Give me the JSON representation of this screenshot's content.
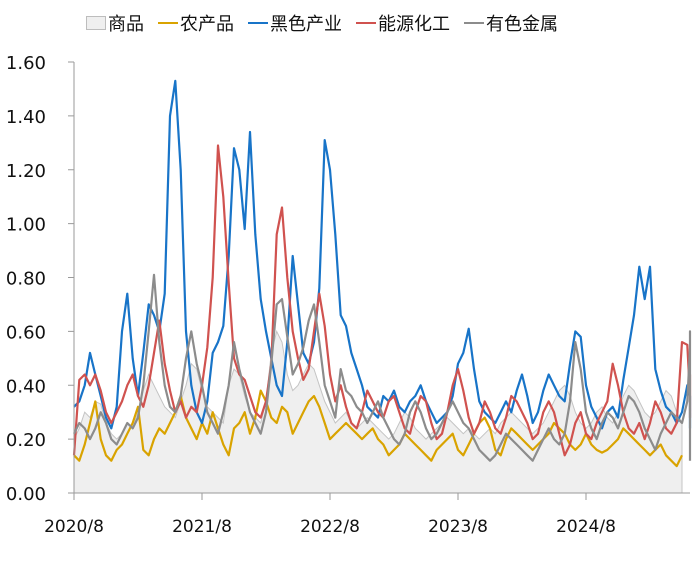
{
  "chart_data": {
    "type": "line",
    "title": "",
    "xlabel": "",
    "ylabel": "",
    "ylim": [
      0,
      1.6
    ],
    "yticks": [
      "0.00",
      "0.20",
      "0.40",
      "0.60",
      "0.80",
      "1.00",
      "1.20",
      "1.40",
      "1.60"
    ],
    "xticks": [
      "2020/8",
      "2021/8",
      "2022/8",
      "2023/8",
      "2024/8"
    ],
    "x_range": [
      "2020/8",
      "2025/3"
    ],
    "grid": false,
    "legend_position": "top",
    "sampling": "half-monthly, starting 2020/8",
    "series": [
      {
        "name": "商品",
        "kind": "area",
        "color": "#efefef",
        "stroke": "#c4c4c4",
        "values": [
          0.2,
          0.24,
          0.3,
          0.28,
          0.34,
          0.33,
          0.26,
          0.22,
          0.2,
          0.22,
          0.26,
          0.24,
          0.3,
          0.38,
          0.44,
          0.4,
          0.36,
          0.32,
          0.3,
          0.28,
          0.34,
          0.4,
          0.48,
          0.46,
          0.38,
          0.32,
          0.3,
          0.28,
          0.26,
          0.4,
          0.46,
          0.44,
          0.36,
          0.3,
          0.28,
          0.26,
          0.34,
          0.52,
          0.6,
          0.56,
          0.44,
          0.38,
          0.4,
          0.44,
          0.48,
          0.46,
          0.4,
          0.34,
          0.3,
          0.26,
          0.28,
          0.3,
          0.26,
          0.24,
          0.26,
          0.28,
          0.26,
          0.24,
          0.22,
          0.2,
          0.22,
          0.26,
          0.3,
          0.28,
          0.24,
          0.22,
          0.2,
          0.22,
          0.24,
          0.26,
          0.28,
          0.26,
          0.24,
          0.22,
          0.24,
          0.22,
          0.2,
          0.22,
          0.24,
          0.22,
          0.26,
          0.28,
          0.3,
          0.28,
          0.26,
          0.24,
          0.22,
          0.24,
          0.26,
          0.3,
          0.34,
          0.38,
          0.4,
          0.36,
          0.3,
          0.26,
          0.24,
          0.26,
          0.3,
          0.32,
          0.28,
          0.26,
          0.3,
          0.36,
          0.4,
          0.38,
          0.34,
          0.3,
          0.28,
          0.3,
          0.34,
          0.38,
          0.36,
          0.3,
          0.26
        ]
      },
      {
        "name": "农产品",
        "kind": "line",
        "color": "#d9a300",
        "values": [
          0.14,
          0.12,
          0.18,
          0.26,
          0.34,
          0.2,
          0.14,
          0.12,
          0.16,
          0.18,
          0.22,
          0.26,
          0.32,
          0.16,
          0.14,
          0.2,
          0.24,
          0.22,
          0.26,
          0.3,
          0.36,
          0.28,
          0.24,
          0.2,
          0.26,
          0.22,
          0.3,
          0.24,
          0.18,
          0.14,
          0.24,
          0.26,
          0.3,
          0.22,
          0.28,
          0.38,
          0.34,
          0.28,
          0.26,
          0.32,
          0.3,
          0.22,
          0.26,
          0.3,
          0.34,
          0.36,
          0.32,
          0.26,
          0.2,
          0.22,
          0.24,
          0.26,
          0.24,
          0.22,
          0.2,
          0.22,
          0.24,
          0.2,
          0.18,
          0.14,
          0.16,
          0.18,
          0.22,
          0.2,
          0.18,
          0.16,
          0.14,
          0.12,
          0.16,
          0.18,
          0.2,
          0.22,
          0.16,
          0.14,
          0.18,
          0.22,
          0.26,
          0.28,
          0.24,
          0.16,
          0.14,
          0.2,
          0.24,
          0.22,
          0.2,
          0.18,
          0.16,
          0.18,
          0.2,
          0.22,
          0.26,
          0.24,
          0.22,
          0.18,
          0.16,
          0.18,
          0.22,
          0.18,
          0.16,
          0.15,
          0.16,
          0.18,
          0.2,
          0.24,
          0.22,
          0.2,
          0.18,
          0.16,
          0.14,
          0.16,
          0.18,
          0.14,
          0.12,
          0.1,
          0.14
        ]
      },
      {
        "name": "黑色产业",
        "kind": "line",
        "color": "#1874c8",
        "values": [
          0.32,
          0.34,
          0.4,
          0.52,
          0.44,
          0.36,
          0.28,
          0.24,
          0.32,
          0.6,
          0.74,
          0.5,
          0.36,
          0.52,
          0.7,
          0.66,
          0.6,
          0.74,
          1.4,
          1.53,
          1.2,
          0.6,
          0.4,
          0.3,
          0.26,
          0.34,
          0.52,
          0.56,
          0.62,
          0.88,
          1.28,
          1.2,
          0.98,
          1.34,
          0.96,
          0.72,
          0.6,
          0.5,
          0.4,
          0.36,
          0.56,
          0.88,
          0.7,
          0.52,
          0.48,
          0.56,
          0.76,
          1.31,
          1.2,
          0.96,
          0.66,
          0.62,
          0.52,
          0.46,
          0.4,
          0.32,
          0.3,
          0.28,
          0.36,
          0.34,
          0.38,
          0.32,
          0.3,
          0.34,
          0.36,
          0.4,
          0.34,
          0.3,
          0.26,
          0.28,
          0.3,
          0.36,
          0.48,
          0.52,
          0.61,
          0.46,
          0.34,
          0.3,
          0.28,
          0.26,
          0.3,
          0.34,
          0.3,
          0.38,
          0.44,
          0.36,
          0.26,
          0.3,
          0.38,
          0.44,
          0.4,
          0.36,
          0.34,
          0.48,
          0.6,
          0.58,
          0.4,
          0.32,
          0.28,
          0.24,
          0.3,
          0.32,
          0.28,
          0.42,
          0.54,
          0.66,
          0.84,
          0.72,
          0.84,
          0.46,
          0.38,
          0.32,
          0.3,
          0.26,
          0.3,
          0.4,
          0.36,
          0.3,
          0.26,
          0.24
        ]
      },
      {
        "name": "能源化工",
        "kind": "line",
        "color": "#d0524f",
        "values": [
          0.14,
          0.42,
          0.44,
          0.4,
          0.44,
          0.38,
          0.3,
          0.26,
          0.3,
          0.34,
          0.4,
          0.44,
          0.36,
          0.32,
          0.4,
          0.52,
          0.64,
          0.48,
          0.38,
          0.3,
          0.34,
          0.28,
          0.32,
          0.3,
          0.4,
          0.54,
          0.8,
          1.29,
          1.1,
          0.78,
          0.5,
          0.44,
          0.42,
          0.36,
          0.3,
          0.28,
          0.34,
          0.48,
          0.96,
          1.06,
          0.8,
          0.6,
          0.5,
          0.42,
          0.46,
          0.6,
          0.74,
          0.62,
          0.44,
          0.34,
          0.4,
          0.32,
          0.26,
          0.24,
          0.3,
          0.38,
          0.34,
          0.3,
          0.28,
          0.34,
          0.36,
          0.3,
          0.24,
          0.22,
          0.3,
          0.36,
          0.34,
          0.26,
          0.2,
          0.22,
          0.3,
          0.4,
          0.46,
          0.38,
          0.28,
          0.22,
          0.26,
          0.34,
          0.3,
          0.24,
          0.22,
          0.28,
          0.36,
          0.34,
          0.3,
          0.26,
          0.2,
          0.22,
          0.3,
          0.34,
          0.3,
          0.22,
          0.14,
          0.18,
          0.26,
          0.3,
          0.22,
          0.2,
          0.26,
          0.3,
          0.34,
          0.48,
          0.4,
          0.3,
          0.24,
          0.22,
          0.26,
          0.2,
          0.26,
          0.34,
          0.3,
          0.24,
          0.22,
          0.26,
          0.56,
          0.55,
          0.36,
          0.3,
          0.28,
          0.44
        ]
      },
      {
        "name": "有色金属",
        "kind": "line",
        "color": "#8c8c8c",
        "values": [
          0.22,
          0.26,
          0.24,
          0.2,
          0.24,
          0.3,
          0.26,
          0.2,
          0.18,
          0.22,
          0.26,
          0.24,
          0.28,
          0.4,
          0.6,
          0.81,
          0.56,
          0.4,
          0.32,
          0.3,
          0.36,
          0.5,
          0.6,
          0.48,
          0.4,
          0.3,
          0.26,
          0.22,
          0.3,
          0.4,
          0.56,
          0.46,
          0.38,
          0.3,
          0.26,
          0.22,
          0.3,
          0.48,
          0.7,
          0.72,
          0.58,
          0.44,
          0.48,
          0.54,
          0.64,
          0.7,
          0.56,
          0.4,
          0.34,
          0.28,
          0.46,
          0.38,
          0.36,
          0.32,
          0.3,
          0.26,
          0.3,
          0.34,
          0.28,
          0.24,
          0.2,
          0.18,
          0.22,
          0.3,
          0.34,
          0.3,
          0.24,
          0.2,
          0.22,
          0.26,
          0.3,
          0.34,
          0.3,
          0.26,
          0.24,
          0.2,
          0.16,
          0.14,
          0.12,
          0.14,
          0.18,
          0.22,
          0.2,
          0.18,
          0.16,
          0.14,
          0.12,
          0.16,
          0.2,
          0.24,
          0.2,
          0.18,
          0.22,
          0.34,
          0.56,
          0.46,
          0.3,
          0.24,
          0.2,
          0.26,
          0.3,
          0.28,
          0.24,
          0.3,
          0.36,
          0.34,
          0.3,
          0.24,
          0.2,
          0.16,
          0.22,
          0.26,
          0.3,
          0.28,
          0.26,
          0.34,
          0.54,
          0.6,
          0.44,
          0.3,
          0.2,
          0.16,
          0.14,
          0.12
        ]
      }
    ]
  },
  "legend": {
    "items": [
      {
        "label": "商品",
        "kind": "area",
        "color": "#efefef"
      },
      {
        "label": "农产品",
        "kind": "line",
        "color": "#d9a300"
      },
      {
        "label": "黑色产业",
        "kind": "line",
        "color": "#1874c8"
      },
      {
        "label": "能源化工",
        "kind": "line",
        "color": "#d0524f"
      },
      {
        "label": "有色金属",
        "kind": "line",
        "color": "#8c8c8c"
      }
    ]
  }
}
